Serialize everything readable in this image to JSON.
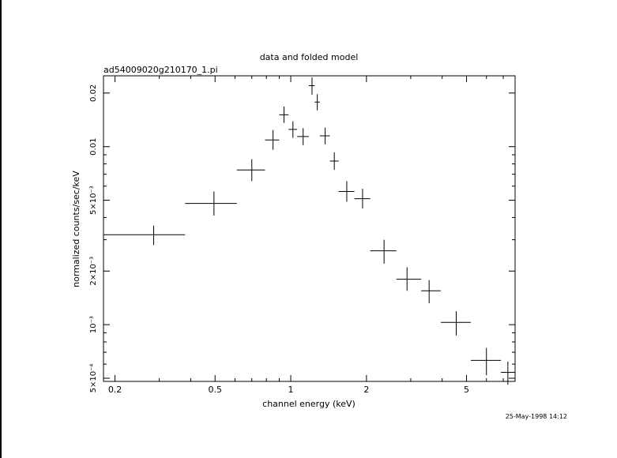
{
  "chart_data": {
    "type": "scatter",
    "title": "data and folded model",
    "subtitle": "ad54009020g210170_1.pi",
    "xlabel": "channel energy (keV)",
    "ylabel": "normalized counts/sec/keV",
    "xscale": "log",
    "yscale": "log",
    "xlim": [
      0.18,
      7.8
    ],
    "ylim": [
      0.00048,
      0.025
    ],
    "grid": false,
    "x_ticks": [
      {
        "value": 0.2,
        "label": "0.2"
      },
      {
        "value": 0.5,
        "label": "0.5"
      },
      {
        "value": 1,
        "label": "1"
      },
      {
        "value": 2,
        "label": "2"
      },
      {
        "value": 5,
        "label": "5"
      }
    ],
    "y_ticks": [
      {
        "value": 0.0005,
        "label": "5×10⁻⁴"
      },
      {
        "value": 0.001,
        "label": "10⁻³"
      },
      {
        "value": 0.002,
        "label": "2×10⁻³"
      },
      {
        "value": 0.005,
        "label": "5×10⁻³"
      },
      {
        "value": 0.01,
        "label": "0.01"
      },
      {
        "value": 0.02,
        "label": "0.02"
      }
    ],
    "series": [
      {
        "points": [
          {
            "x": 0.285,
            "xlo": 0.18,
            "xhi": 0.38,
            "y": 0.0032,
            "ylo": 0.0028,
            "yhi": 0.0036
          },
          {
            "x": 0.495,
            "xlo": 0.38,
            "xhi": 0.61,
            "y": 0.0048,
            "ylo": 0.0041,
            "yhi": 0.0056
          },
          {
            "x": 0.7,
            "xlo": 0.61,
            "xhi": 0.79,
            "y": 0.0074,
            "ylo": 0.0064,
            "yhi": 0.0085
          },
          {
            "x": 0.85,
            "xlo": 0.79,
            "xhi": 0.9,
            "y": 0.0109,
            "ylo": 0.0096,
            "yhi": 0.0124
          },
          {
            "x": 0.94,
            "xlo": 0.9,
            "xhi": 0.98,
            "y": 0.0151,
            "ylo": 0.0136,
            "yhi": 0.0168
          },
          {
            "x": 1.02,
            "xlo": 0.98,
            "xhi": 1.06,
            "y": 0.0125,
            "ylo": 0.0112,
            "yhi": 0.0139
          },
          {
            "x": 1.12,
            "xlo": 1.06,
            "xhi": 1.18,
            "y": 0.0114,
            "ylo": 0.0102,
            "yhi": 0.0127
          },
          {
            "x": 1.215,
            "xlo": 1.18,
            "xhi": 1.245,
            "y": 0.022,
            "ylo": 0.0196,
            "yhi": 0.0245
          },
          {
            "x": 1.275,
            "xlo": 1.245,
            "xhi": 1.305,
            "y": 0.0178,
            "ylo": 0.016,
            "yhi": 0.0197
          },
          {
            "x": 1.37,
            "xlo": 1.305,
            "xhi": 1.43,
            "y": 0.0115,
            "ylo": 0.0103,
            "yhi": 0.0128
          },
          {
            "x": 1.49,
            "xlo": 1.43,
            "xhi": 1.55,
            "y": 0.0083,
            "ylo": 0.0074,
            "yhi": 0.0093
          },
          {
            "x": 1.67,
            "xlo": 1.55,
            "xhi": 1.79,
            "y": 0.0056,
            "ylo": 0.0049,
            "yhi": 0.0064
          },
          {
            "x": 1.93,
            "xlo": 1.79,
            "xhi": 2.07,
            "y": 0.0051,
            "ylo": 0.0045,
            "yhi": 0.0058
          },
          {
            "x": 2.35,
            "xlo": 2.07,
            "xhi": 2.63,
            "y": 0.0026,
            "ylo": 0.0022,
            "yhi": 0.003
          },
          {
            "x": 2.9,
            "xlo": 2.63,
            "xhi": 3.3,
            "y": 0.0018,
            "ylo": 0.00155,
            "yhi": 0.0021
          },
          {
            "x": 3.55,
            "xlo": 3.3,
            "xhi": 3.95,
            "y": 0.00155,
            "ylo": 0.00132,
            "yhi": 0.00178
          },
          {
            "x": 4.55,
            "xlo": 3.95,
            "xhi": 5.2,
            "y": 0.00103,
            "ylo": 0.00087,
            "yhi": 0.00119
          },
          {
            "x": 6.0,
            "xlo": 5.2,
            "xhi": 6.85,
            "y": 0.00063,
            "ylo": 0.00052,
            "yhi": 0.00074
          },
          {
            "x": 7.3,
            "xlo": 6.85,
            "xhi": 7.8,
            "y": 0.00054,
            "ylo": 0.00046,
            "yhi": 0.00062
          }
        ]
      }
    ]
  },
  "timestamp": "25-May-1998 14:12"
}
